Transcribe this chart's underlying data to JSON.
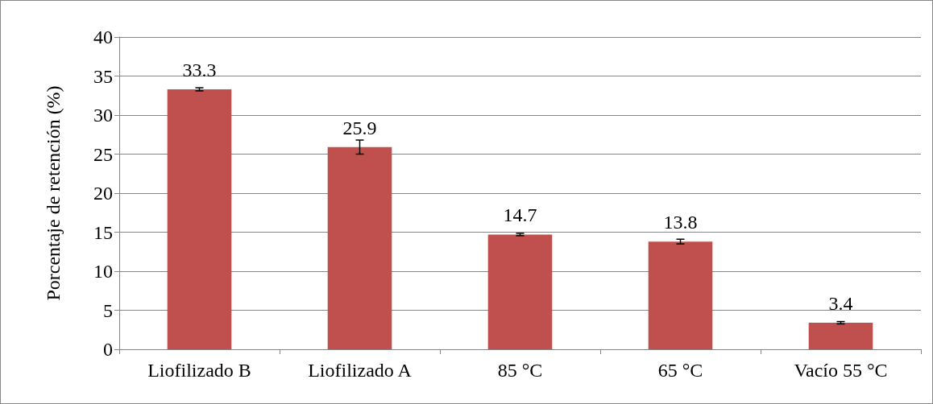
{
  "chart_data": {
    "type": "bar",
    "ylabel": "Porcentaje de retención (%)",
    "categories": [
      "Liofilizado B",
      "Liofilizado A",
      "85 °C",
      "65 °C",
      "Vacío 55 °C"
    ],
    "values": [
      33.3,
      25.9,
      14.7,
      13.8,
      3.4
    ],
    "errors": [
      0.2,
      0.9,
      0.15,
      0.3,
      0.15
    ],
    "color": "#c0504d",
    "ylim": [
      0,
      40
    ],
    "yticks": [
      0,
      5,
      10,
      15,
      20,
      25,
      30,
      35,
      40
    ],
    "grid": "y",
    "data_labels": true
  }
}
